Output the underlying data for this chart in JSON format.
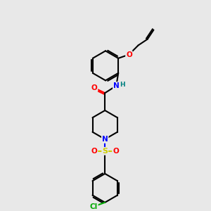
{
  "bg_color": "#e8e8e8",
  "bond_color": "#000000",
  "bond_width": 1.5,
  "atom_colors": {
    "O": "#ff0000",
    "N": "#0000ff",
    "S": "#cccc00",
    "Cl": "#00aa00",
    "H": "#008080",
    "C": "#000000"
  },
  "figsize": [
    3.0,
    3.0
  ],
  "dpi": 100
}
